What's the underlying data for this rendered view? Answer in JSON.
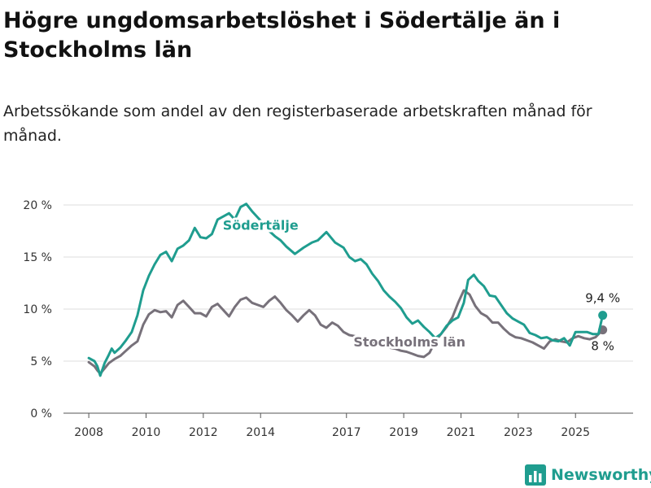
{
  "header": {
    "title": "Högre ungdomsarbetslöshet i Södertälje än i Stockholms län",
    "subtitle": "Arbetssökande som andel av den registerbaserade arbetskraften månad för månad."
  },
  "brand": {
    "name": "Newsworthy",
    "color": "#1f9d8f"
  },
  "chart_data": {
    "type": "line",
    "ylim": [
      0,
      20
    ],
    "y_ticks": [
      0,
      5,
      10,
      15,
      20
    ],
    "y_tick_labels": [
      "0 %",
      "5 %",
      "10 %",
      "15 %",
      "20 %"
    ],
    "x_ticks": [
      2008,
      2010,
      2012,
      2014,
      2017,
      2019,
      2021,
      2023,
      2025
    ],
    "xlim": [
      2007.4,
      2026.5
    ],
    "grid": true,
    "series": [
      {
        "name": "Södertälje",
        "color": "#1f9d8f",
        "end_label": "9,4 %",
        "points": [
          [
            2008.0,
            5.3
          ],
          [
            2008.2,
            5.0
          ],
          [
            2008.3,
            4.5
          ],
          [
            2008.4,
            3.6
          ],
          [
            2008.55,
            4.8
          ],
          [
            2008.7,
            5.6
          ],
          [
            2008.8,
            6.2
          ],
          [
            2008.9,
            5.8
          ],
          [
            2009.1,
            6.3
          ],
          [
            2009.3,
            7.0
          ],
          [
            2009.5,
            7.8
          ],
          [
            2009.7,
            9.4
          ],
          [
            2009.9,
            11.8
          ],
          [
            2010.1,
            13.2
          ],
          [
            2010.3,
            14.3
          ],
          [
            2010.5,
            15.2
          ],
          [
            2010.7,
            15.5
          ],
          [
            2010.9,
            14.6
          ],
          [
            2011.1,
            15.8
          ],
          [
            2011.3,
            16.1
          ],
          [
            2011.5,
            16.6
          ],
          [
            2011.7,
            17.8
          ],
          [
            2011.9,
            16.9
          ],
          [
            2012.1,
            16.8
          ],
          [
            2012.3,
            17.2
          ],
          [
            2012.5,
            18.6
          ],
          [
            2012.7,
            18.9
          ],
          [
            2012.9,
            19.2
          ],
          [
            2013.1,
            18.6
          ],
          [
            2013.3,
            19.8
          ],
          [
            2013.5,
            20.1
          ],
          [
            2013.7,
            19.4
          ],
          [
            2013.9,
            18.8
          ],
          [
            2014.1,
            18.2
          ],
          [
            2014.3,
            17.5
          ],
          [
            2014.5,
            17.0
          ],
          [
            2014.7,
            16.6
          ],
          [
            2014.9,
            16.0
          ],
          [
            2015.2,
            15.3
          ],
          [
            2015.5,
            15.9
          ],
          [
            2015.8,
            16.4
          ],
          [
            2016.0,
            16.6
          ],
          [
            2016.3,
            17.4
          ],
          [
            2016.6,
            16.4
          ],
          [
            2016.9,
            15.9
          ],
          [
            2017.1,
            15.0
          ],
          [
            2017.3,
            14.6
          ],
          [
            2017.5,
            14.8
          ],
          [
            2017.7,
            14.3
          ],
          [
            2017.9,
            13.4
          ],
          [
            2018.1,
            12.7
          ],
          [
            2018.3,
            11.8
          ],
          [
            2018.5,
            11.2
          ],
          [
            2018.7,
            10.7
          ],
          [
            2018.9,
            10.1
          ],
          [
            2019.1,
            9.2
          ],
          [
            2019.3,
            8.6
          ],
          [
            2019.5,
            8.9
          ],
          [
            2019.7,
            8.3
          ],
          [
            2019.9,
            7.8
          ],
          [
            2020.1,
            7.2
          ],
          [
            2020.3,
            7.6
          ],
          [
            2020.5,
            8.4
          ],
          [
            2020.7,
            8.9
          ],
          [
            2020.9,
            9.2
          ],
          [
            2021.1,
            10.6
          ],
          [
            2021.25,
            12.8
          ],
          [
            2021.45,
            13.3
          ],
          [
            2021.6,
            12.7
          ],
          [
            2021.8,
            12.2
          ],
          [
            2022.0,
            11.3
          ],
          [
            2022.2,
            11.2
          ],
          [
            2022.4,
            10.4
          ],
          [
            2022.6,
            9.6
          ],
          [
            2022.8,
            9.1
          ],
          [
            2023.0,
            8.8
          ],
          [
            2023.2,
            8.5
          ],
          [
            2023.4,
            7.7
          ],
          [
            2023.6,
            7.5
          ],
          [
            2023.8,
            7.2
          ],
          [
            2024.0,
            7.3
          ],
          [
            2024.2,
            7.0
          ],
          [
            2024.4,
            6.9
          ],
          [
            2024.6,
            7.2
          ],
          [
            2024.8,
            6.5
          ],
          [
            2025.0,
            7.8
          ],
          [
            2025.2,
            7.8
          ],
          [
            2025.4,
            7.8
          ],
          [
            2025.6,
            7.6
          ],
          [
            2025.8,
            7.6
          ],
          [
            2025.95,
            9.4
          ]
        ]
      },
      {
        "name": "Stockholms län",
        "color": "#77717a",
        "end_label": "8 %",
        "points": [
          [
            2008.0,
            4.9
          ],
          [
            2008.2,
            4.5
          ],
          [
            2008.3,
            4.1
          ],
          [
            2008.4,
            3.8
          ],
          [
            2008.55,
            4.3
          ],
          [
            2008.7,
            4.8
          ],
          [
            2008.9,
            5.2
          ],
          [
            2009.1,
            5.5
          ],
          [
            2009.3,
            6.0
          ],
          [
            2009.5,
            6.5
          ],
          [
            2009.7,
            6.9
          ],
          [
            2009.9,
            8.5
          ],
          [
            2010.1,
            9.5
          ],
          [
            2010.3,
            9.9
          ],
          [
            2010.5,
            9.7
          ],
          [
            2010.7,
            9.8
          ],
          [
            2010.9,
            9.2
          ],
          [
            2011.1,
            10.4
          ],
          [
            2011.3,
            10.8
          ],
          [
            2011.5,
            10.2
          ],
          [
            2011.7,
            9.6
          ],
          [
            2011.9,
            9.6
          ],
          [
            2012.1,
            9.3
          ],
          [
            2012.3,
            10.2
          ],
          [
            2012.5,
            10.5
          ],
          [
            2012.7,
            9.9
          ],
          [
            2012.9,
            9.3
          ],
          [
            2013.1,
            10.2
          ],
          [
            2013.3,
            10.9
          ],
          [
            2013.5,
            11.1
          ],
          [
            2013.7,
            10.6
          ],
          [
            2013.9,
            10.4
          ],
          [
            2014.1,
            10.2
          ],
          [
            2014.3,
            10.8
          ],
          [
            2014.5,
            11.2
          ],
          [
            2014.7,
            10.6
          ],
          [
            2014.9,
            9.9
          ],
          [
            2015.1,
            9.4
          ],
          [
            2015.3,
            8.8
          ],
          [
            2015.5,
            9.4
          ],
          [
            2015.7,
            9.9
          ],
          [
            2015.9,
            9.4
          ],
          [
            2016.1,
            8.5
          ],
          [
            2016.3,
            8.2
          ],
          [
            2016.5,
            8.7
          ],
          [
            2016.7,
            8.4
          ],
          [
            2016.9,
            7.8
          ],
          [
            2017.1,
            7.5
          ],
          [
            2017.3,
            7.4
          ],
          [
            2017.5,
            7.3
          ],
          [
            2017.7,
            7.0
          ],
          [
            2017.9,
            6.9
          ],
          [
            2018.1,
            6.7
          ],
          [
            2018.3,
            6.4
          ],
          [
            2018.5,
            6.3
          ],
          [
            2018.7,
            6.2
          ],
          [
            2018.9,
            6.0
          ],
          [
            2019.1,
            5.9
          ],
          [
            2019.3,
            5.7
          ],
          [
            2019.5,
            5.5
          ],
          [
            2019.7,
            5.4
          ],
          [
            2019.9,
            5.8
          ],
          [
            2020.1,
            6.9
          ],
          [
            2020.3,
            7.6
          ],
          [
            2020.5,
            8.3
          ],
          [
            2020.7,
            9.2
          ],
          [
            2020.9,
            10.6
          ],
          [
            2021.1,
            11.8
          ],
          [
            2021.3,
            11.4
          ],
          [
            2021.5,
            10.3
          ],
          [
            2021.7,
            9.6
          ],
          [
            2021.9,
            9.3
          ],
          [
            2022.1,
            8.7
          ],
          [
            2022.3,
            8.7
          ],
          [
            2022.5,
            8.1
          ],
          [
            2022.7,
            7.6
          ],
          [
            2022.9,
            7.3
          ],
          [
            2023.1,
            7.2
          ],
          [
            2023.3,
            7.0
          ],
          [
            2023.5,
            6.8
          ],
          [
            2023.7,
            6.5
          ],
          [
            2023.9,
            6.2
          ],
          [
            2024.1,
            6.9
          ],
          [
            2024.3,
            7.1
          ],
          [
            2024.5,
            6.9
          ],
          [
            2024.7,
            6.8
          ],
          [
            2024.9,
            7.2
          ],
          [
            2025.1,
            7.4
          ],
          [
            2025.3,
            7.2
          ],
          [
            2025.5,
            7.1
          ],
          [
            2025.7,
            7.3
          ],
          [
            2025.95,
            8.0
          ]
        ]
      }
    ]
  }
}
